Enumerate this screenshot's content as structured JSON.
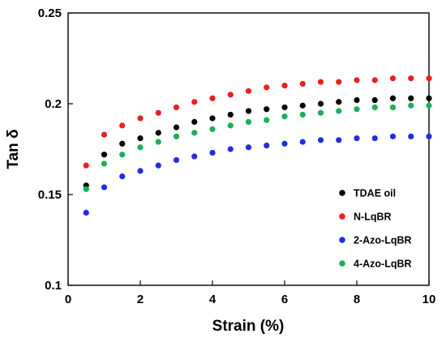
{
  "chart_data": {
    "type": "scatter",
    "xlabel": "Strain (%)",
    "ylabel": "Tan δ",
    "xlim": [
      0,
      10
    ],
    "ylim": [
      0.1,
      0.25
    ],
    "xticks": [
      0,
      2,
      4,
      6,
      8,
      10
    ],
    "yticks": [
      0.1,
      0.15,
      0.2,
      0.25
    ],
    "xtick_labels": [
      "0",
      "2",
      "4",
      "6",
      "8",
      "10"
    ],
    "ytick_labels": [
      "0.1",
      "0.15",
      "0.2",
      "0.25"
    ],
    "grid": false,
    "legend": "bottom-right",
    "x": [
      0.5,
      1.0,
      1.5,
      2.0,
      2.5,
      3.0,
      3.5,
      4.0,
      4.5,
      5.0,
      5.5,
      6.0,
      6.5,
      7.0,
      7.5,
      8.0,
      8.5,
      9.0,
      9.5,
      10.0
    ],
    "series": [
      {
        "name": "TDAE oil",
        "color": "#000000",
        "values": [
          0.155,
          0.172,
          0.178,
          0.181,
          0.184,
          0.187,
          0.19,
          0.192,
          0.194,
          0.196,
          0.197,
          0.198,
          0.199,
          0.2,
          0.201,
          0.202,
          0.202,
          0.203,
          0.203,
          0.203
        ]
      },
      {
        "name": "N-LqBR",
        "color": "#e8211e",
        "values": [
          0.166,
          0.183,
          0.188,
          0.192,
          0.195,
          0.198,
          0.201,
          0.203,
          0.205,
          0.207,
          0.209,
          0.21,
          0.211,
          0.212,
          0.212,
          0.213,
          0.213,
          0.214,
          0.214,
          0.214
        ]
      },
      {
        "name": "2-Azo-LqBR",
        "color": "#1f2fe0",
        "values": [
          0.14,
          0.154,
          0.16,
          0.163,
          0.166,
          0.169,
          0.171,
          0.173,
          0.175,
          0.176,
          0.177,
          0.178,
          0.179,
          0.18,
          0.18,
          0.181,
          0.181,
          0.182,
          0.182,
          0.182
        ]
      },
      {
        "name": "4-Azo-LqBR",
        "color": "#18b05a",
        "values": [
          0.153,
          0.167,
          0.172,
          0.176,
          0.179,
          0.182,
          0.184,
          0.186,
          0.188,
          0.19,
          0.191,
          0.193,
          0.194,
          0.195,
          0.196,
          0.197,
          0.198,
          0.198,
          0.199,
          0.199
        ]
      }
    ]
  }
}
